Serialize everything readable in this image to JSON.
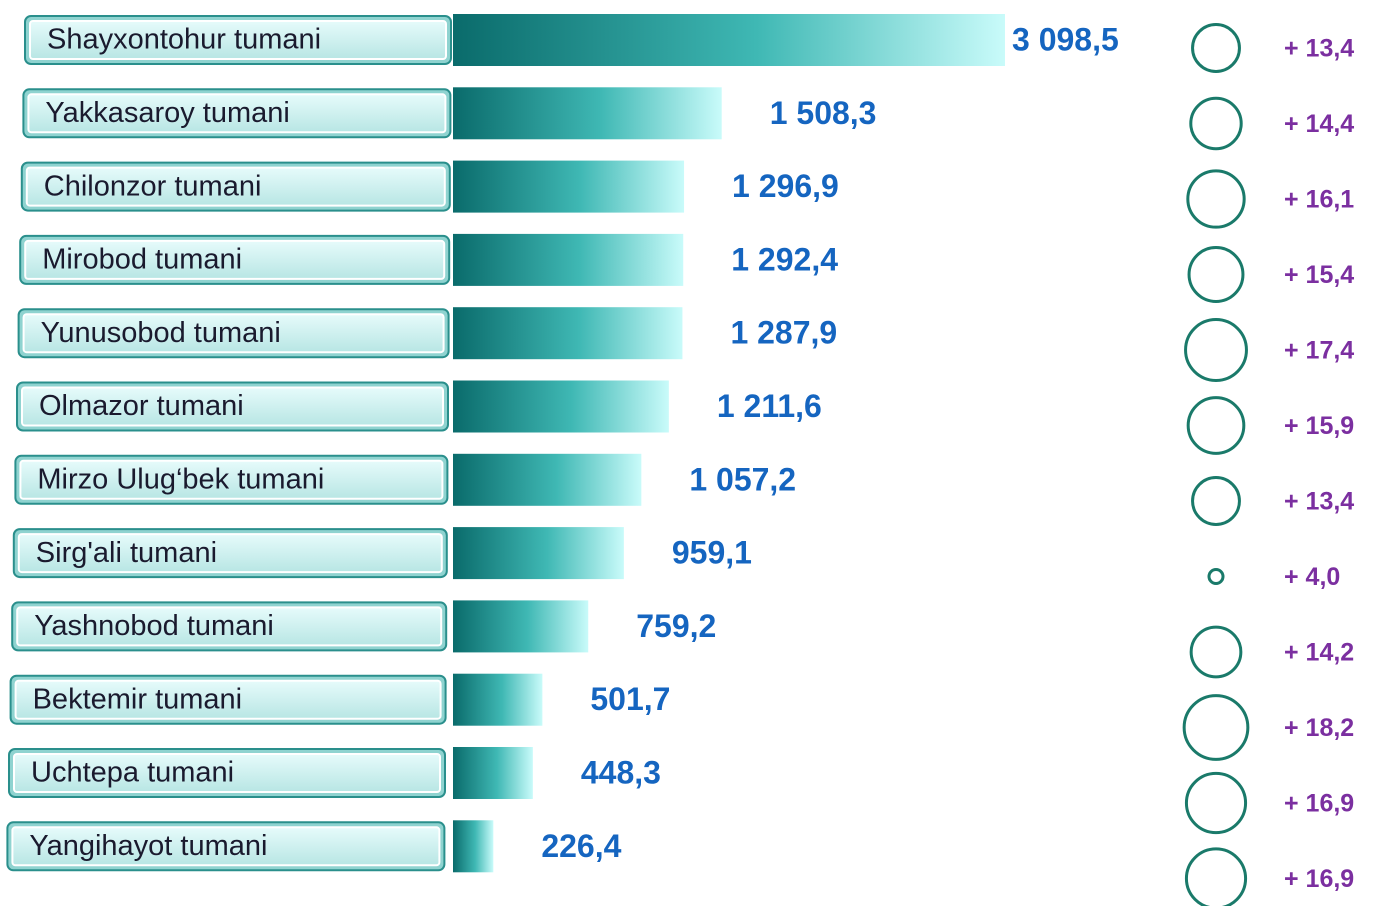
{
  "chart_data": {
    "type": "bar",
    "categories": [
      "Shayxontohur tumani",
      "Yakkasaroy tumani",
      "Chilonzor tumani",
      "Mirobod tumani",
      "Yunusobod tumani",
      "Olmazor tumani",
      "Mirzo Ulug‘bek tumani",
      "Sirg'ali tumani",
      "Yashnobod tumani",
      "Bektemir tumani",
      "Uchtepa tumani",
      "Yangihayot tumani"
    ],
    "values": [
      3098.5,
      1508.3,
      1296.9,
      1292.4,
      1287.9,
      1211.6,
      1057.2,
      959.1,
      759.2,
      501.7,
      448.3,
      226.4
    ],
    "value_labels": [
      "3 098,5",
      "1 508,3",
      "1 296,9",
      "1 292,4",
      "1 287,9",
      "1 211,6",
      "1 057,2",
      "959,1",
      "759,2",
      "501,7",
      "448,3",
      "226,4"
    ],
    "color": "#0a6b6b",
    "growth": {
      "values": [
        13.4,
        14.4,
        16.1,
        15.4,
        17.4,
        15.9,
        13.4,
        4.0,
        14.2,
        18.2,
        16.9,
        16.9
      ],
      "value_labels": [
        "+  13,4",
        "+  14,4",
        "+ 16,1",
        "+ 15,4",
        "+  17,4",
        "+  15,9",
        "+  13,4",
        "+  4,0",
        "+  14,2",
        "+  18,2",
        "+  16,9",
        "+  16,9"
      ],
      "color": "#1a7a6a"
    }
  }
}
